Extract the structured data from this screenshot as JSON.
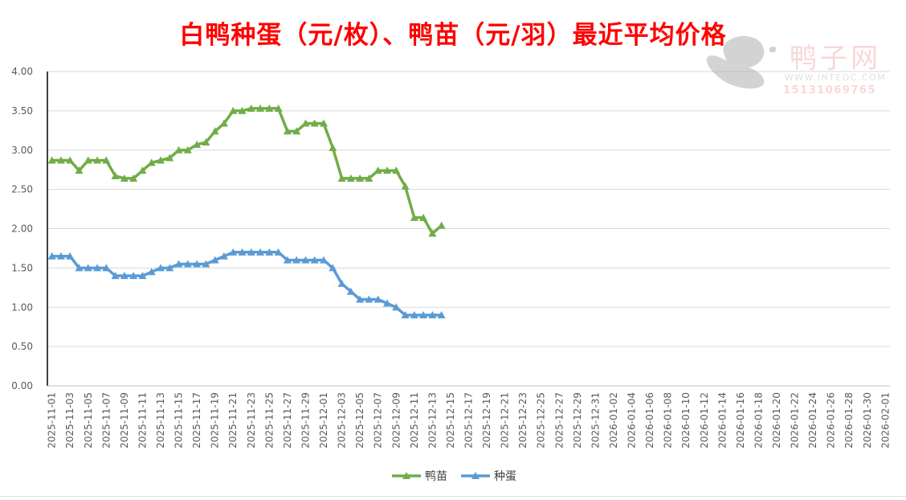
{
  "chart_data": {
    "type": "line",
    "title": "白鸭种蛋（元/枚）、鸭苗（元/羽）最近平均价格",
    "xlabel": "",
    "ylabel": "",
    "ylim": [
      0,
      4
    ],
    "yticks": [
      "0.00",
      "0.50",
      "1.00",
      "1.50",
      "2.00",
      "2.50",
      "3.00",
      "3.50",
      "4.00"
    ],
    "grid": true,
    "legend_position": "bottom",
    "x_start": "2025-11-01",
    "x_end": "2026-02-02",
    "x_tick_labels": [
      "2025-11-01",
      "2025-11-03",
      "2025-11-05",
      "2025-11-07",
      "2025-11-09",
      "2025-11-11",
      "2025-11-13",
      "2025-11-15",
      "2025-11-17",
      "2025-11-19",
      "2025-11-21",
      "2025-11-23",
      "2025-11-25",
      "2025-11-27",
      "2025-11-29",
      "2025-12-01",
      "2025-12-03",
      "2025-12-05",
      "2025-12-07",
      "2025-12-09",
      "2025-12-11",
      "2025-12-13",
      "2025-12-15",
      "2025-12-17",
      "2025-12-19",
      "2025-12-21",
      "2025-12-23",
      "2025-12-25",
      "2025-12-27",
      "2025-12-29",
      "2025-12-31",
      "2026-01-02",
      "2026-01-04",
      "2026-01-06",
      "2026-01-08",
      "2026-01-10",
      "2026-01-12",
      "2026-01-14",
      "2026-01-16",
      "2026-01-18",
      "2026-01-20",
      "2026-01-22",
      "2026-01-24",
      "2026-01-26",
      "2026-01-28",
      "2026-01-30",
      "2026-02-01"
    ],
    "x": [
      "2025-11-01",
      "2025-11-02",
      "2025-11-03",
      "2025-11-04",
      "2025-11-05",
      "2025-11-06",
      "2025-11-07",
      "2025-11-08",
      "2025-11-09",
      "2025-11-10",
      "2025-11-11",
      "2025-11-12",
      "2025-11-13",
      "2025-11-14",
      "2025-11-15",
      "2025-11-16",
      "2025-11-17",
      "2025-11-18",
      "2025-11-19",
      "2025-11-20",
      "2025-11-21",
      "2025-11-22",
      "2025-11-23",
      "2025-11-24",
      "2025-11-25",
      "2025-11-26",
      "2025-11-27",
      "2025-11-28",
      "2025-11-29",
      "2025-11-30",
      "2025-12-01",
      "2025-12-02",
      "2025-12-03",
      "2025-12-04",
      "2025-12-05",
      "2025-12-06",
      "2025-12-07",
      "2025-12-08",
      "2025-12-09",
      "2025-12-10",
      "2025-12-11",
      "2025-12-12",
      "2025-12-13",
      "2025-12-14"
    ],
    "series": [
      {
        "name": "鸭苗",
        "color": "#70ad47",
        "marker": "triangle",
        "values": [
          2.87,
          2.87,
          2.87,
          2.74,
          2.87,
          2.87,
          2.87,
          2.67,
          2.64,
          2.64,
          2.74,
          2.84,
          2.87,
          2.9,
          3.0,
          3.0,
          3.07,
          3.1,
          3.24,
          3.34,
          3.5,
          3.5,
          3.53,
          3.53,
          3.53,
          3.53,
          3.24,
          3.24,
          3.34,
          3.34,
          3.34,
          3.03,
          2.64,
          2.64,
          2.64,
          2.64,
          2.74,
          2.74,
          2.74,
          2.54,
          2.14,
          2.14,
          1.94,
          2.04
        ]
      },
      {
        "name": "种蛋",
        "color": "#5b9bd5",
        "marker": "triangle",
        "values": [
          1.65,
          1.65,
          1.65,
          1.5,
          1.5,
          1.5,
          1.5,
          1.4,
          1.4,
          1.4,
          1.4,
          1.45,
          1.5,
          1.5,
          1.55,
          1.55,
          1.55,
          1.55,
          1.6,
          1.65,
          1.7,
          1.7,
          1.7,
          1.7,
          1.7,
          1.7,
          1.6,
          1.6,
          1.6,
          1.6,
          1.6,
          1.5,
          1.3,
          1.2,
          1.1,
          1.1,
          1.1,
          1.05,
          1.0,
          0.9,
          0.9,
          0.9,
          0.9,
          0.9
        ]
      }
    ]
  },
  "watermark": {
    "name": "鸭子网",
    "url": "WWW.INTEDC.COM",
    "phone": "15131069765",
    "logo_icon": "duck-logo-icon"
  }
}
